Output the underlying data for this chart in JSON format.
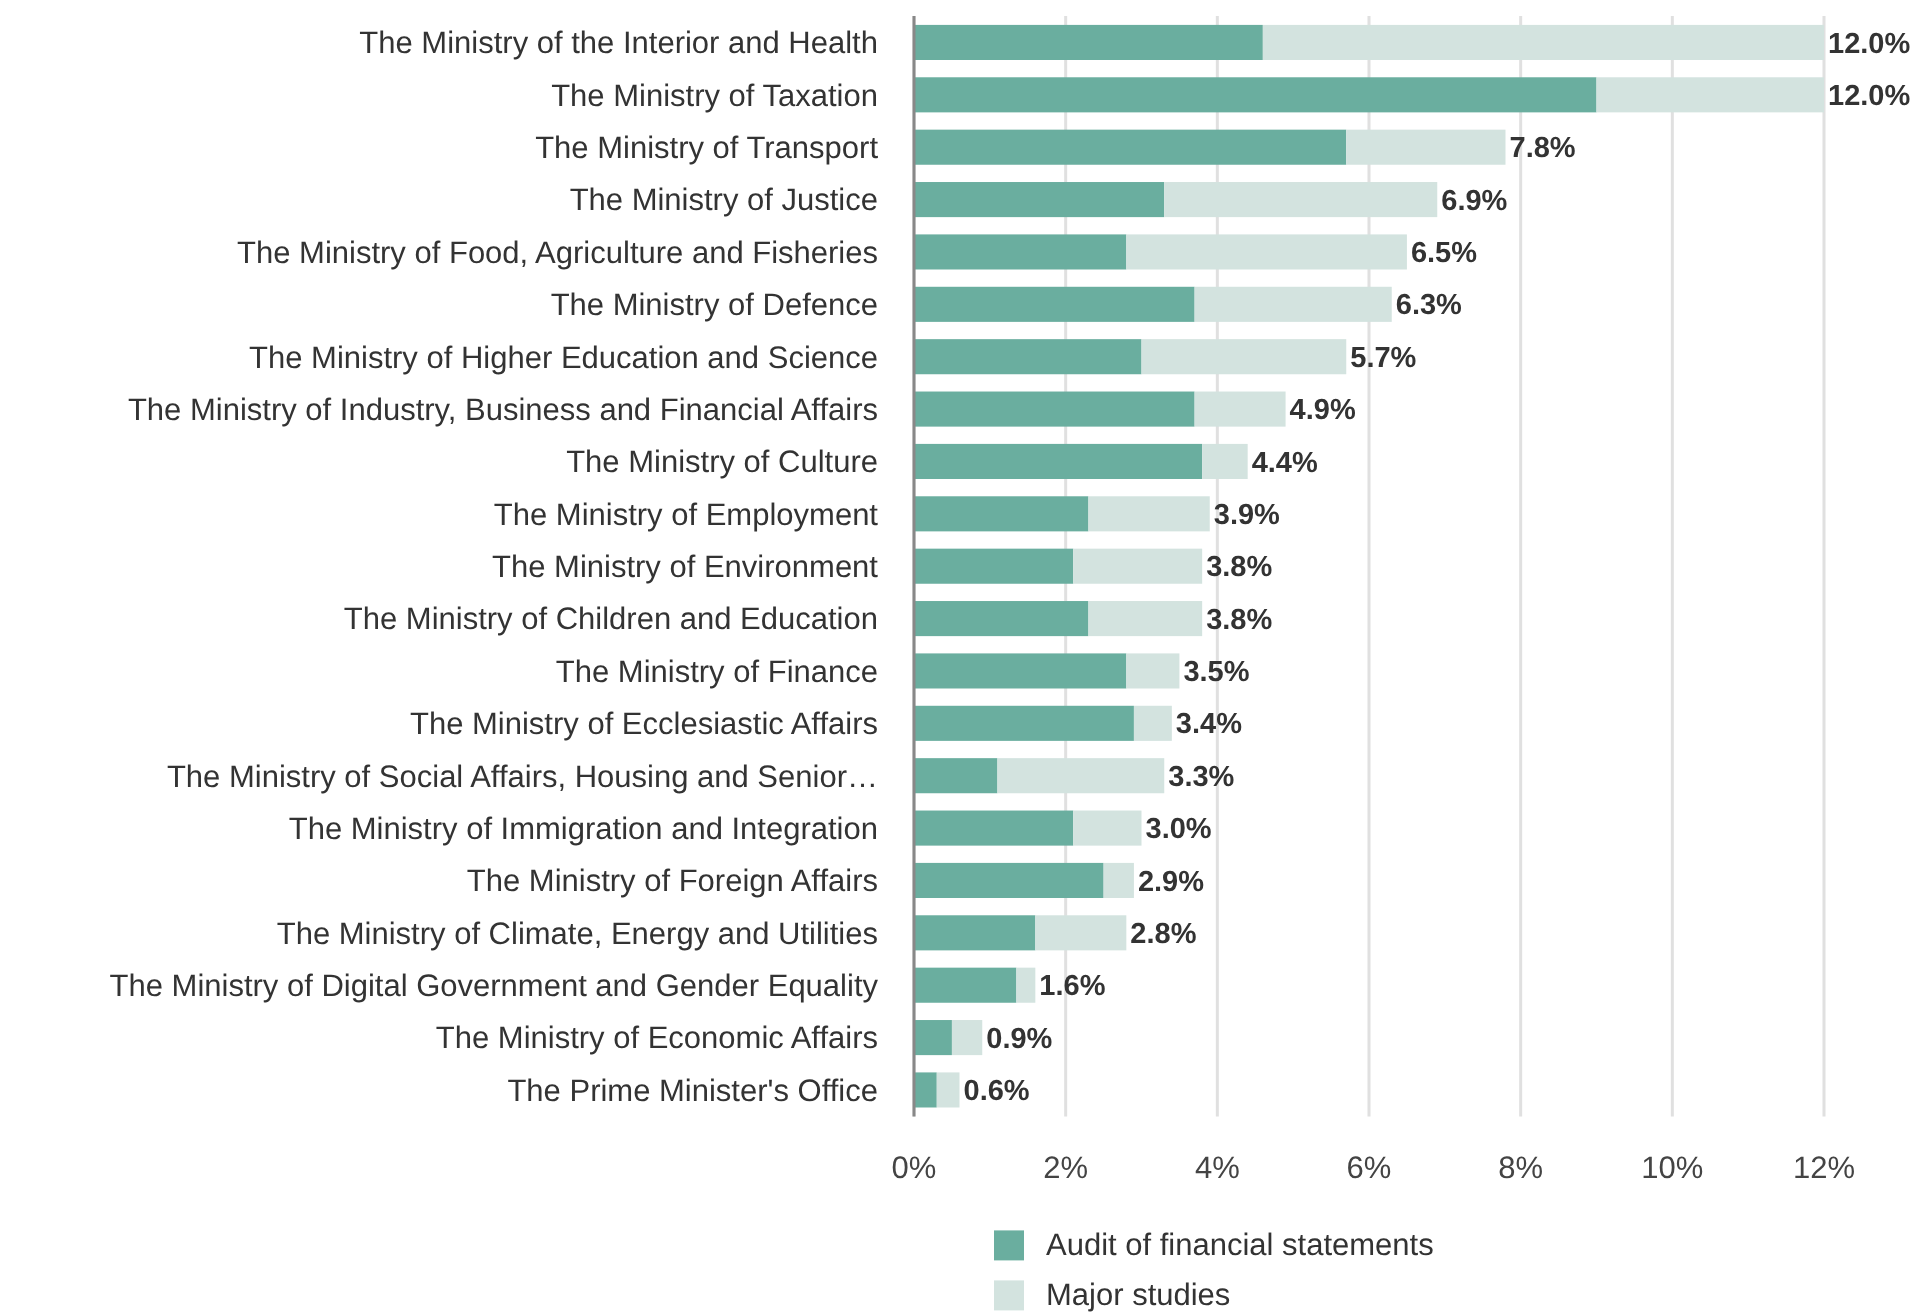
{
  "chart_data": {
    "type": "bar",
    "orientation": "horizontal",
    "stacked": true,
    "categories": [
      "The Ministry of the Interior and Health",
      "The Ministry of Taxation",
      "The Ministry of Transport",
      "The Ministry of Justice",
      "The Ministry of Food, Agriculture and Fisheries",
      "The Ministry of Defence",
      "The Ministry of Higher Education and Science",
      "The Ministry of Industry, Business and Financial Affairs",
      "The Ministry of Culture",
      "The Ministry of Employment",
      "The Ministry of Environment",
      "The Ministry of Children and Education",
      "The Ministry of Finance",
      "The Ministry of Ecclesiastic Affairs",
      "The Ministry of Social Affairs, Housing and Senior…",
      "The Ministry of Immigration and Integration",
      "The Ministry of Foreign Affairs",
      "The Ministry of Climate, Energy and Utilities",
      "The Ministry of Digital Government and Gender Equality",
      "The Ministry of Economic Affairs",
      "The Prime Minister's Office"
    ],
    "series": [
      {
        "name": "Audit of financial statements",
        "color": "#6aae9f",
        "values": [
          4.6,
          9.0,
          5.7,
          3.3,
          2.8,
          3.7,
          3.0,
          3.7,
          3.8,
          2.3,
          2.1,
          2.3,
          2.8,
          2.9,
          1.1,
          2.1,
          2.5,
          1.6,
          1.35,
          0.5,
          0.3
        ]
      },
      {
        "name": "Major studies",
        "color": "#d3e3df",
        "values": [
          7.4,
          3.0,
          2.1,
          3.6,
          3.7,
          2.6,
          2.7,
          1.2,
          0.6,
          1.6,
          1.7,
          1.5,
          0.7,
          0.5,
          2.2,
          0.9,
          0.4,
          1.2,
          0.25,
          0.4,
          0.3
        ]
      }
    ],
    "totals": [
      "12.0%",
      "12.0%",
      "7.8%",
      "6.9%",
      "6.5%",
      "6.3%",
      "5.7%",
      "4.9%",
      "4.4%",
      "3.9%",
      "3.8%",
      "3.8%",
      "3.5%",
      "3.4%",
      "3.3%",
      "3.0%",
      "2.9%",
      "2.8%",
      "1.6%",
      "0.9%",
      "0.6%"
    ],
    "xlim": [
      0,
      12
    ],
    "xticks": [
      {
        "value": 0,
        "label": "0%"
      },
      {
        "value": 2,
        "label": "2%"
      },
      {
        "value": 4,
        "label": "4%"
      },
      {
        "value": 6,
        "label": "6%"
      },
      {
        "value": 8,
        "label": "8%"
      },
      {
        "value": 10,
        "label": "10%"
      },
      {
        "value": 12,
        "label": "12%"
      }
    ],
    "grid": "x",
    "legend": "bottom"
  }
}
